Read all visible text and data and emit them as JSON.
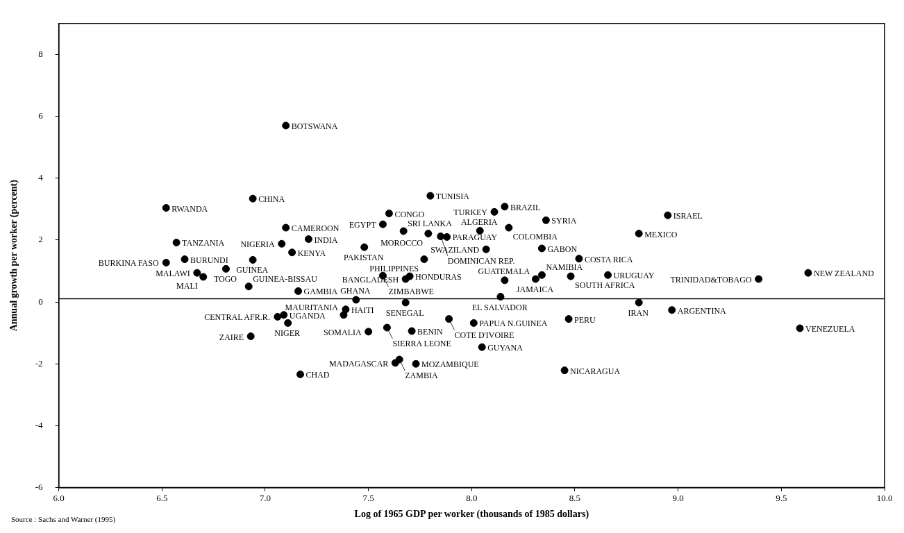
{
  "chart_data": {
    "type": "scatter",
    "xlabel": "Log of 1965 GDP per worker (thousands of 1985 dollars)",
    "ylabel": "Annual growth per worker (percent)",
    "xlim": [
      6.0,
      10.0
    ],
    "xticks": [
      {
        "value": 6,
        "label": "6.0"
      },
      {
        "value": 6.5,
        "label": "6.5"
      },
      {
        "value": 7,
        "label": "7.0"
      },
      {
        "value": 7.5,
        "label": "7.5"
      },
      {
        "value": 8,
        "label": "8.0"
      },
      {
        "value": 8.5,
        "label": "8.5"
      },
      {
        "value": 9,
        "label": "9.0"
      },
      {
        "value": 9.5,
        "label": "9.5"
      },
      {
        "value": 10,
        "label": "10.0"
      }
    ],
    "ylim": [
      -6,
      9
    ],
    "yticks": [
      -6,
      -4,
      -2,
      0,
      2,
      4,
      6,
      8
    ],
    "grid": false,
    "legend": false,
    "marker": "circle",
    "ref_lines": [
      {
        "axis": "y",
        "value": 0.1
      }
    ],
    "series": [
      {
        "color": "#000000",
        "x": [
          6.52,
          7.1,
          6.94,
          7.1,
          7.21,
          6.57,
          7.08,
          7.13,
          6.52,
          6.61,
          6.94,
          6.81,
          6.67,
          6.7,
          6.92,
          7.16,
          7.09,
          7.06,
          7.11,
          6.93,
          7.17,
          7.8,
          8.16,
          8.11,
          8.36,
          7.6,
          7.57,
          7.67,
          7.79,
          7.85,
          7.88,
          8.04,
          8.18,
          8.07,
          8.34,
          7.48,
          7.77,
          8.52,
          7.57,
          7.7,
          7.68,
          8.16,
          8.34,
          8.31,
          8.48,
          8.66,
          8.14,
          7.44,
          7.68,
          7.39,
          7.38,
          7.59,
          7.89,
          8.01,
          7.5,
          7.71,
          8.47,
          8.05,
          7.65,
          7.63,
          7.73,
          8.45,
          8.95,
          8.81,
          9.63,
          9.39,
          8.81,
          8.97,
          9.59
        ],
        "values": [
          3.04,
          5.7,
          3.34,
          2.4,
          2.03,
          1.92,
          1.88,
          1.6,
          1.27,
          1.38,
          1.36,
          1.07,
          0.94,
          0.81,
          0.5,
          0.35,
          -0.42,
          -0.48,
          -0.68,
          -1.11,
          -2.34,
          3.43,
          3.08,
          2.91,
          2.64,
          2.86,
          2.51,
          2.29,
          2.21,
          2.12,
          2.1,
          2.3,
          2.4,
          1.7,
          1.73,
          1.77,
          1.38,
          1.4,
          0.85,
          0.83,
          0.74,
          0.7,
          0.87,
          0.74,
          0.83,
          0.87,
          0.17,
          0.07,
          -0.02,
          -0.24,
          -0.42,
          -0.83,
          -0.55,
          -0.68,
          -0.96,
          -0.94,
          -0.55,
          -1.46,
          -1.86,
          -1.97,
          -2.0,
          -2.21,
          2.8,
          2.21,
          0.94,
          0.74,
          -0.02,
          -0.26,
          -0.85
        ]
      }
    ],
    "annotations": [
      {
        "text": "RWANDA",
        "x": 6.52,
        "y": 3.04
      },
      {
        "text": "BOTSWANA",
        "x": 7.1,
        "y": 5.7
      },
      {
        "text": "CHINA",
        "x": 6.94,
        "y": 3.34
      },
      {
        "text": "CAMEROON",
        "x": 7.1,
        "y": 2.4
      },
      {
        "text": "INDIA",
        "x": 7.21,
        "y": 2.03
      },
      {
        "text": "TANZANIA",
        "x": 6.57,
        "y": 1.92
      },
      {
        "text": "NIGERIA",
        "x": 7.08,
        "y": 1.88
      },
      {
        "text": "KENYA",
        "x": 7.13,
        "y": 1.6
      },
      {
        "text": "BURKINA FASO",
        "x": 6.52,
        "y": 1.27
      },
      {
        "text": "BURUNDI",
        "x": 6.61,
        "y": 1.38
      },
      {
        "text": "GUINEA",
        "x": 6.94,
        "y": 1.36
      },
      {
        "text": "TOGO",
        "x": 6.81,
        "y": 1.07
      },
      {
        "text": "MALAWI",
        "x": 6.67,
        "y": 0.94
      },
      {
        "text": "MALI",
        "x": 6.7,
        "y": 0.81
      },
      {
        "text": "GUINEA-BISSAU",
        "x": 6.92,
        "y": 0.5
      },
      {
        "text": "GAMBIA",
        "x": 7.16,
        "y": 0.35
      },
      {
        "text": "UGANDA",
        "x": 7.09,
        "y": -0.42
      },
      {
        "text": "CENTRAL AFR.R.",
        "x": 7.06,
        "y": -0.48
      },
      {
        "text": "NIGER",
        "x": 7.11,
        "y": -0.68
      },
      {
        "text": "ZAIRE",
        "x": 6.93,
        "y": -1.11
      },
      {
        "text": "CHAD",
        "x": 7.17,
        "y": -2.34
      },
      {
        "text": "TUNISIA",
        "x": 7.8,
        "y": 3.43
      },
      {
        "text": "BRAZIL",
        "x": 8.16,
        "y": 3.08
      },
      {
        "text": "TURKEY",
        "x": 8.11,
        "y": 2.91
      },
      {
        "text": "SYRIA",
        "x": 8.36,
        "y": 2.64
      },
      {
        "text": "CONGO",
        "x": 7.6,
        "y": 2.86
      },
      {
        "text": "EGYPT",
        "x": 7.57,
        "y": 2.51
      },
      {
        "text": "SRI LANKA",
        "x": 7.67,
        "y": 2.29
      },
      {
        "text": "MOROCCO",
        "x": 7.79,
        "y": 2.21
      },
      {
        "text": "DOMINICAN REP.",
        "x": 7.85,
        "y": 2.12
      },
      {
        "text": "PARAGUAY",
        "x": 7.88,
        "y": 2.1
      },
      {
        "text": "ALGERIA",
        "x": 8.04,
        "y": 2.3
      },
      {
        "text": "COLOMBIA",
        "x": 8.18,
        "y": 2.4
      },
      {
        "text": "SWAZILAND",
        "x": 8.07,
        "y": 1.7
      },
      {
        "text": "GABON",
        "x": 8.34,
        "y": 1.73
      },
      {
        "text": "PAKISTAN",
        "x": 7.48,
        "y": 1.77
      },
      {
        "text": "PHILIPPINES",
        "x": 7.77,
        "y": 1.38
      },
      {
        "text": "COSTA RICA",
        "x": 8.52,
        "y": 1.4
      },
      {
        "text": "ZIMBABWE",
        "x": 7.57,
        "y": 0.85
      },
      {
        "text": "HONDURAS",
        "x": 7.7,
        "y": 0.83
      },
      {
        "text": "BANGLADESH",
        "x": 7.68,
        "y": 0.74
      },
      {
        "text": "GUATEMALA",
        "x": 8.16,
        "y": 0.7
      },
      {
        "text": "NAMIBIA",
        "x": 8.34,
        "y": 0.87
      },
      {
        "text": "JAMAICA",
        "x": 8.31,
        "y": 0.74
      },
      {
        "text": "SOUTH AFRICA",
        "x": 8.48,
        "y": 0.83
      },
      {
        "text": "URUGUAY",
        "x": 8.66,
        "y": 0.87
      },
      {
        "text": "EL SALVADOR",
        "x": 8.14,
        "y": 0.17
      },
      {
        "text": "GHANA",
        "x": 7.44,
        "y": 0.07
      },
      {
        "text": "SENEGAL",
        "x": 7.68,
        "y": -0.02
      },
      {
        "text": "HAITI",
        "x": 7.39,
        "y": -0.24
      },
      {
        "text": "MAURITANIA",
        "x": 7.38,
        "y": -0.42
      },
      {
        "text": "SIERRA LEONE",
        "x": 7.59,
        "y": -0.83
      },
      {
        "text": "COTE D'IVOIRE",
        "x": 7.89,
        "y": -0.55
      },
      {
        "text": "PAPUA N.GUINEA",
        "x": 8.01,
        "y": -0.68
      },
      {
        "text": "SOMALIA",
        "x": 7.5,
        "y": -0.96
      },
      {
        "text": "BENIN",
        "x": 7.71,
        "y": -0.94
      },
      {
        "text": "PERU",
        "x": 8.47,
        "y": -0.55
      },
      {
        "text": "GUYANA",
        "x": 8.05,
        "y": -1.46
      },
      {
        "text": "ZAMBIA",
        "x": 7.65,
        "y": -1.86
      },
      {
        "text": "MADAGASCAR",
        "x": 7.63,
        "y": -1.97
      },
      {
        "text": "MOZAMBIQUE",
        "x": 7.73,
        "y": -2.0
      },
      {
        "text": "NICARAGUA",
        "x": 8.45,
        "y": -2.21
      },
      {
        "text": "ISRAEL",
        "x": 8.95,
        "y": 2.8
      },
      {
        "text": "MEXICO",
        "x": 8.81,
        "y": 2.21
      },
      {
        "text": "NEW ZEALAND",
        "x": 9.63,
        "y": 0.94
      },
      {
        "text": "TRINIDAD&TOBAGO",
        "x": 9.39,
        "y": 0.74
      },
      {
        "text": "IRAN",
        "x": 8.81,
        "y": -0.02
      },
      {
        "text": "ARGENTINA",
        "x": 8.97,
        "y": -0.26
      },
      {
        "text": "VENEZUELA",
        "x": 9.59,
        "y": -0.85
      },
      "Source : Sachs and Warner (1995)"
    ]
  }
}
